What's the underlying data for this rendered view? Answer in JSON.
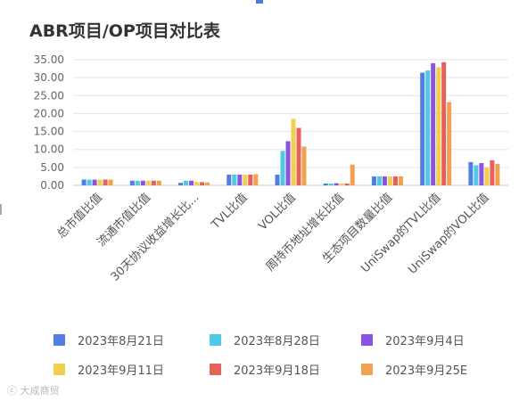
{
  "title": "ABR项目/OP项目对比表",
  "watermark": "大成商贸",
  "chart_data": {
    "type": "bar",
    "title": "ABR项目/OP项目对比表",
    "xlabel": "",
    "ylabel": "",
    "ylim": [
      0,
      35
    ],
    "yticks": [
      "0.00",
      "5.00",
      "10.00",
      "15.00",
      "20.00",
      "25.00",
      "30.00",
      "35.00"
    ],
    "grid": true,
    "legend_position": "bottom",
    "categories": [
      "总市值比值",
      "流通市值比值",
      "30天协议收益增长比...",
      "TVL比值",
      "VOL比值",
      "周持币地址增长比值",
      "生态项目数量比值",
      "UniSwap的TVL比值",
      "UniSwap的VOL比值"
    ],
    "series": [
      {
        "name": "2023年8月21日",
        "color": "#4f7fe0",
        "values": [
          1.6,
          1.3,
          0.7,
          3.0,
          3.0,
          0.5,
          2.5,
          31.4,
          6.5
        ]
      },
      {
        "name": "2023年8月28日",
        "color": "#4fc8ea",
        "values": [
          1.6,
          1.3,
          1.3,
          3.0,
          9.6,
          0.5,
          2.5,
          32.0,
          5.6
        ]
      },
      {
        "name": "2023年9月4日",
        "color": "#8a54e3",
        "values": [
          1.6,
          1.3,
          1.3,
          3.0,
          12.3,
          0.6,
          2.5,
          34.0,
          6.2
        ]
      },
      {
        "name": "2023年9月11日",
        "color": "#f3cf4f",
        "values": [
          1.6,
          1.3,
          1.0,
          3.0,
          18.5,
          0.5,
          2.5,
          32.9,
          5.0
        ]
      },
      {
        "name": "2023年9月18日",
        "color": "#e8605a",
        "values": [
          1.6,
          1.3,
          0.9,
          3.0,
          16.0,
          0.5,
          2.5,
          34.3,
          7.0
        ]
      },
      {
        "name": "2023年9月25E",
        "color": "#f0a251",
        "values": [
          1.6,
          1.3,
          0.8,
          3.1,
          10.8,
          5.8,
          2.5,
          23.2,
          6.0
        ]
      }
    ]
  }
}
